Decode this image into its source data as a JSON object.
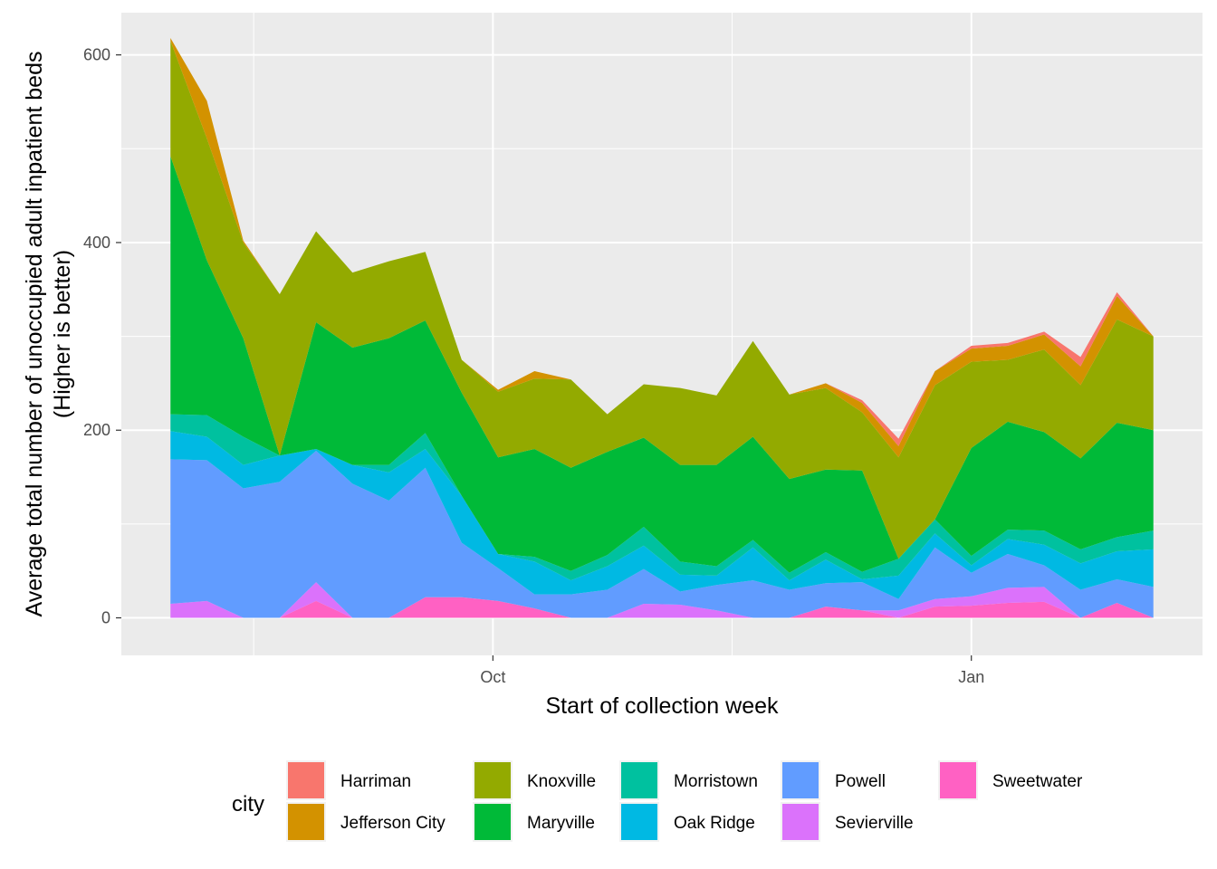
{
  "chart_data": {
    "type": "area",
    "stacked": true,
    "xlabel": "Start of collection week",
    "ylabel": "Average total number of unoccupied adult inpatient beds",
    "ylabel_sub": "(Higher is better)",
    "x_ticks": [
      {
        "label": "Oct",
        "date": "2020-10-01"
      },
      {
        "label": "Jan",
        "date": "2021-01-01"
      }
    ],
    "ylim": [
      -40,
      645
    ],
    "y_ticks": [
      0,
      200,
      400,
      600
    ],
    "grid": true,
    "legend": {
      "title": "city",
      "position": "bottom"
    },
    "x": [
      "2020-07-31",
      "2020-08-07",
      "2020-08-14",
      "2020-08-21",
      "2020-08-28",
      "2020-09-04",
      "2020-09-11",
      "2020-09-18",
      "2020-09-25",
      "2020-10-02",
      "2020-10-09",
      "2020-10-16",
      "2020-10-23",
      "2020-10-30",
      "2020-11-06",
      "2020-11-13",
      "2020-11-20",
      "2020-11-27",
      "2020-12-04",
      "2020-12-11",
      "2020-12-18",
      "2020-12-25",
      "2021-01-01",
      "2021-01-08",
      "2021-01-15",
      "2021-01-22",
      "2021-01-29",
      "2021-02-05"
    ],
    "series": [
      {
        "name": "Sweetwater",
        "color": "#FF61C3",
        "values": [
          0,
          0,
          0,
          0,
          18,
          0,
          0,
          22,
          22,
          18,
          10,
          0,
          0,
          0,
          0,
          0,
          0,
          0,
          12,
          8,
          0,
          12,
          13,
          16,
          17,
          0,
          16,
          0
        ]
      },
      {
        "name": "Sevierville",
        "color": "#DB72FB",
        "values": [
          15,
          18,
          0,
          0,
          20,
          0,
          0,
          0,
          0,
          0,
          0,
          0,
          0,
          15,
          14,
          8,
          0,
          0,
          0,
          0,
          8,
          8,
          10,
          16,
          16,
          0,
          0,
          0
        ]
      },
      {
        "name": "Powell",
        "color": "#619CFF",
        "values": [
          154,
          150,
          138,
          145,
          140,
          143,
          125,
          138,
          58,
          35,
          15,
          25,
          30,
          37,
          14,
          27,
          40,
          30,
          25,
          30,
          12,
          55,
          25,
          36,
          23,
          30,
          25,
          33
        ]
      },
      {
        "name": "Oak Ridge",
        "color": "#00B9E3",
        "values": [
          30,
          25,
          25,
          28,
          2,
          20,
          30,
          20,
          50,
          15,
          35,
          15,
          25,
          25,
          18,
          10,
          35,
          10,
          25,
          3,
          25,
          15,
          8,
          16,
          22,
          28,
          30,
          40
        ]
      },
      {
        "name": "Morristown",
        "color": "#00C19F",
        "values": [
          18,
          23,
          30,
          0,
          0,
          0,
          8,
          17,
          0,
          0,
          5,
          10,
          12,
          20,
          14,
          10,
          8,
          8,
          8,
          8,
          18,
          15,
          10,
          10,
          15,
          15,
          15,
          20
        ]
      },
      {
        "name": "Maryville",
        "color": "#00BA38",
        "values": [
          275,
          165,
          105,
          0,
          135,
          125,
          135,
          120,
          110,
          103,
          115,
          110,
          110,
          95,
          103,
          108,
          110,
          100,
          88,
          108,
          0,
          0,
          115,
          115,
          105,
          97,
          122,
          107
        ]
      },
      {
        "name": "Knoxville",
        "color": "#93AA00",
        "values": [
          123,
          130,
          102,
          172,
          97,
          80,
          82,
          73,
          35,
          70,
          75,
          94,
          40,
          57,
          82,
          74,
          102,
          90,
          87,
          62,
          108,
          143,
          92,
          66,
          88,
          78,
          110,
          100
        ]
      },
      {
        "name": "Jefferson City",
        "color": "#D39200",
        "values": [
          3,
          40,
          2,
          0,
          0,
          0,
          0,
          0,
          0,
          2,
          8,
          0,
          0,
          0,
          0,
          0,
          0,
          0,
          5,
          10,
          12,
          15,
          14,
          15,
          16,
          20,
          25,
          0
        ]
      },
      {
        "name": "Harriman",
        "color": "#F8766D",
        "values": [
          0,
          0,
          0,
          0,
          0,
          0,
          0,
          0,
          0,
          0,
          0,
          0,
          0,
          0,
          0,
          0,
          0,
          0,
          0,
          3,
          8,
          0,
          3,
          3,
          3,
          10,
          4,
          0
        ]
      }
    ],
    "legend_order": [
      "Harriman",
      "Jefferson City",
      "Knoxville",
      "Maryville",
      "Morristown",
      "Oak Ridge",
      "Powell",
      "Sevierville",
      "Sweetwater"
    ]
  }
}
